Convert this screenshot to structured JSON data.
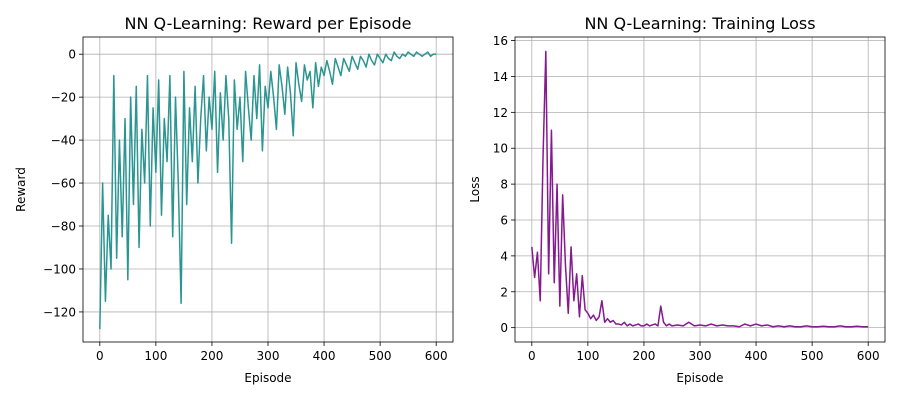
{
  "charts": [
    {
      "chart_data": {
        "type": "line",
        "title": "NN Q-Learning: Reward per Episode",
        "xlabel": "Episode",
        "ylabel": "Reward",
        "xlim": [
          -30,
          630
        ],
        "ylim": [
          -134,
          8
        ],
        "xticks": [
          0,
          100,
          200,
          300,
          400,
          500,
          600
        ],
        "yticks": [
          -120,
          -100,
          -80,
          -60,
          -40,
          -20,
          0
        ],
        "grid": true,
        "color": "#2a9591",
        "series": [
          {
            "x": [
              0,
              5,
              10,
              15,
              20,
              25,
              30,
              35,
              40,
              45,
              50,
              55,
              60,
              65,
              70,
              75,
              80,
              85,
              90,
              95,
              100,
              105,
              110,
              115,
              120,
              125,
              130,
              135,
              140,
              145,
              150,
              155,
              160,
              165,
              170,
              175,
              180,
              185,
              190,
              195,
              200,
              205,
              210,
              215,
              220,
              225,
              230,
              235,
              240,
              245,
              250,
              255,
              260,
              265,
              270,
              275,
              280,
              285,
              290,
              295,
              300,
              305,
              310,
              315,
              320,
              325,
              330,
              335,
              340,
              345,
              350,
              355,
              360,
              365,
              370,
              375,
              380,
              385,
              390,
              395,
              400,
              405,
              410,
              415,
              420,
              425,
              430,
              435,
              440,
              445,
              450,
              455,
              460,
              465,
              470,
              475,
              480,
              485,
              490,
              495,
              500,
              505,
              510,
              515,
              520,
              525,
              530,
              535,
              540,
              545,
              550,
              555,
              560,
              565,
              570,
              575,
              580,
              585,
              590,
              595,
              600
            ],
            "y": [
              -128,
              -60,
              -115,
              -75,
              -100,
              -10,
              -95,
              -40,
              -85,
              -30,
              -105,
              -20,
              -70,
              -15,
              -90,
              -35,
              -60,
              -10,
              -80,
              -25,
              -55,
              -12,
              -75,
              -30,
              -50,
              -10,
              -85,
              -20,
              -60,
              -116,
              -8,
              -70,
              -25,
              -50,
              -15,
              -60,
              -30,
              -10,
              -45,
              -20,
              -35,
              -8,
              -55,
              -18,
              -40,
              -10,
              -30,
              -88,
              -12,
              -35,
              -20,
              -50,
              -8,
              -25,
              -40,
              -10,
              -30,
              -5,
              -45,
              -15,
              -25,
              -8,
              -20,
              -35,
              -5,
              -15,
              -28,
              -6,
              -18,
              -38,
              -4,
              -14,
              -22,
              -5,
              -12,
              -8,
              -25,
              -4,
              -15,
              -6,
              -10,
              -3,
              -8,
              -14,
              -2,
              -6,
              -10,
              -2,
              -5,
              -8,
              -1,
              -4,
              -7,
              -1,
              -3,
              -6,
              0,
              -3,
              -5,
              0,
              -2,
              -4,
              0,
              -2,
              -3,
              1,
              -1,
              -2,
              0,
              -1,
              1,
              0,
              -1,
              1,
              0,
              -1,
              0,
              1,
              -1,
              0,
              0
            ]
          }
        ]
      }
    },
    {
      "chart_data": {
        "type": "line",
        "title": "NN Q-Learning: Training Loss",
        "xlabel": "Episode",
        "ylabel": "Loss",
        "xlim": [
          -30,
          630
        ],
        "ylim": [
          -0.8,
          16.2
        ],
        "xticks": [
          0,
          100,
          200,
          300,
          400,
          500,
          600
        ],
        "yticks": [
          0,
          2,
          4,
          6,
          8,
          10,
          12,
          14,
          16
        ],
        "grid": true,
        "color": "#85198f",
        "series": [
          {
            "x": [
              0,
              5,
              10,
              15,
              20,
              25,
              30,
              35,
              40,
              45,
              50,
              55,
              60,
              65,
              70,
              75,
              80,
              85,
              90,
              95,
              100,
              105,
              110,
              115,
              120,
              125,
              130,
              135,
              140,
              145,
              150,
              155,
              160,
              165,
              170,
              175,
              180,
              185,
              190,
              195,
              200,
              205,
              210,
              215,
              220,
              225,
              230,
              235,
              240,
              245,
              250,
              260,
              270,
              280,
              290,
              300,
              310,
              320,
              330,
              340,
              350,
              360,
              370,
              380,
              390,
              400,
              410,
              420,
              430,
              440,
              450,
              460,
              470,
              480,
              490,
              500,
              510,
              520,
              530,
              540,
              550,
              560,
              570,
              580,
              590,
              600
            ],
            "y": [
              4.5,
              2.8,
              4.2,
              1.5,
              9.5,
              15.4,
              3.0,
              11.0,
              2.5,
              8.0,
              1.2,
              7.4,
              3.5,
              0.8,
              4.5,
              1.5,
              3.0,
              0.6,
              2.9,
              1.0,
              0.8,
              0.5,
              0.7,
              0.4,
              0.6,
              1.5,
              0.3,
              0.5,
              0.3,
              0.4,
              0.2,
              0.2,
              0.15,
              0.3,
              0.1,
              0.2,
              0.1,
              0.15,
              0.2,
              0.1,
              0.1,
              0.2,
              0.1,
              0.15,
              0.2,
              0.1,
              1.2,
              0.3,
              0.1,
              0.2,
              0.1,
              0.15,
              0.1,
              0.3,
              0.1,
              0.15,
              0.1,
              0.2,
              0.1,
              0.15,
              0.1,
              0.1,
              0.05,
              0.2,
              0.1,
              0.2,
              0.1,
              0.15,
              0.05,
              0.1,
              0.05,
              0.1,
              0.05,
              0.05,
              0.1,
              0.05,
              0.05,
              0.08,
              0.05,
              0.05,
              0.1,
              0.05,
              0.05,
              0.08,
              0.05,
              0.05
            ]
          }
        ]
      }
    }
  ]
}
